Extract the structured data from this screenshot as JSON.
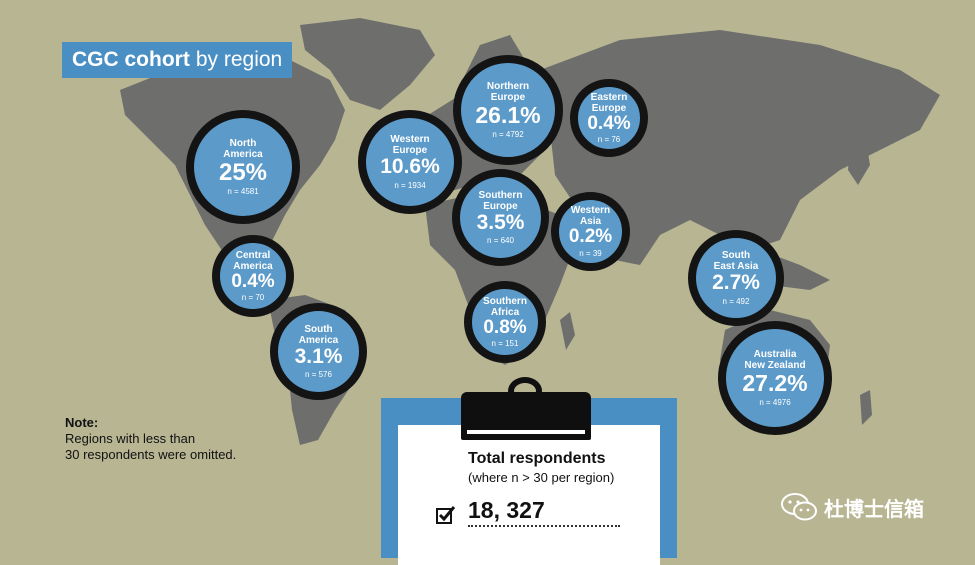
{
  "title": {
    "bold": "CGC cohort",
    "rest": "by region"
  },
  "regions": [
    {
      "label": "North\nAmerica",
      "pct": "25%",
      "n": "n = 4581"
    },
    {
      "label": "Western\nEurope",
      "pct": "10.6%",
      "n": "n = 1934"
    },
    {
      "label": "Northern\nEurope",
      "pct": "26.1%",
      "n": "n = 4792"
    },
    {
      "label": "Eastern\nEurope",
      "pct": "0.4%",
      "n": "n = 76"
    },
    {
      "label": "Southern\nEurope",
      "pct": "3.5%",
      "n": "n = 640"
    },
    {
      "label": "Western\nAsia",
      "pct": "0.2%",
      "n": "n = 39"
    },
    {
      "label": "Central\nAmerica",
      "pct": "0.4%",
      "n": "n = 70"
    },
    {
      "label": "South\nAmerica",
      "pct": "3.1%",
      "n": "n = 576"
    },
    {
      "label": "Southern\nAfrica",
      "pct": "0.8%",
      "n": "n = 151"
    },
    {
      "label": "South\nEast Asia",
      "pct": "2.7%",
      "n": "n = 492"
    },
    {
      "label": "Australia\nNew Zealand",
      "pct": "27.2%",
      "n": "n = 4976"
    }
  ],
  "note": {
    "heading": "Note:",
    "line1": "Regions with less than",
    "line2": "30 respondents were omitted."
  },
  "total": {
    "title": "Total respondents",
    "subtitle": "(where n > 30 per region)",
    "value": "18, 327"
  },
  "watermark": "杜博士信箱",
  "colors": {
    "background": "#b8b593",
    "land": "#6e6e6c",
    "accent": "#4a8fc3",
    "bubble": "#5b9ac9"
  }
}
